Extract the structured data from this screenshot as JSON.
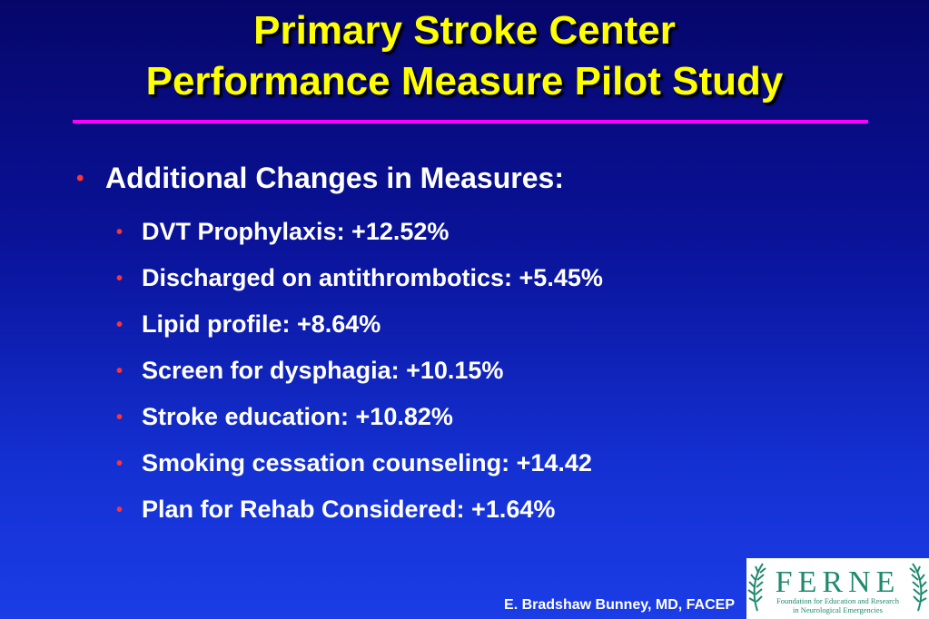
{
  "slide": {
    "title_line1": "Primary Stroke Center",
    "title_line2": "Performance Measure Pilot Study",
    "main_bullet": "Additional Changes in Measures:",
    "sub_items": [
      "DVT Prophylaxis:  +12.52%",
      "Discharged on antithrombotics:  +5.45%",
      "Lipid profile:  +8.64%",
      "Screen for dysphagia:  +10.15%",
      "Stroke education:  +10.82%",
      "Smoking cessation counseling:  +14.42",
      "Plan for Rehab Considered:  +1.64%"
    ],
    "bullet_glyph": "•",
    "footer": "E. Bradshaw Bunney, MD, FACEP"
  },
  "logo": {
    "wordmark": "FERNE",
    "tagline_line1": "Foundation for Education and Research",
    "tagline_line2": "in Neurological Emergencies"
  },
  "colors": {
    "title": "#ffff00",
    "rule": "#ff00ff",
    "bullet": "#ff3333",
    "text": "#ffffff",
    "logo_green": "#1f8a6e"
  }
}
